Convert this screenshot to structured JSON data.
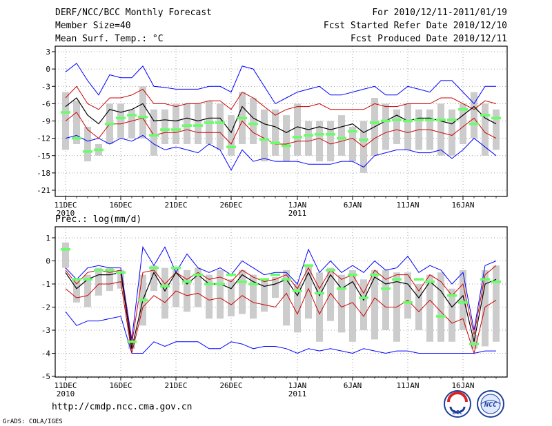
{
  "header": {
    "left": [
      "DERF/NCC/BCC Monthly Forecast",
      "Member Size=40",
      "Mean Surf. Temp.: °C"
    ],
    "right": [
      "For 2010/12/11-2011/01/19",
      "Fcst Started Refer Date 2010/12/10",
      "Fcst Produced Date 2010/12/11"
    ]
  },
  "footer": {
    "url": "http://cmdp.ncc.cma.gov.cn",
    "grads": "GrADS: COLA/IGES",
    "logo1_text": "BCC",
    "logo2_text": "NCC"
  },
  "colors": {
    "bounds": "#0000ff",
    "spread": "#cc0000",
    "mean": "#000000",
    "box": "#cccccc",
    "median": "#66ff66"
  },
  "chart_data": [
    {
      "type": "line",
      "title": "Mean Surf. Temp.: °C",
      "x_day_count": 40,
      "xticks": [
        {
          "day": 1,
          "label": "11DEC",
          "sub": "2010"
        },
        {
          "day": 6,
          "label": "16DEC"
        },
        {
          "day": 11,
          "label": "21DEC"
        },
        {
          "day": 16,
          "label": "26DEC"
        },
        {
          "day": 22,
          "label": "1JAN",
          "sub": "2011"
        },
        {
          "day": 27,
          "label": "6JAN"
        },
        {
          "day": 32,
          "label": "11JAN"
        },
        {
          "day": 37,
          "label": "16JAN"
        }
      ],
      "ylim": [
        -22,
        4
      ],
      "yticks": [
        3,
        0,
        -3,
        -6,
        -9,
        -12,
        -15,
        -18,
        -21
      ],
      "series": {
        "max": [
          -0.5,
          1,
          -2,
          -4.5,
          -1,
          -1.5,
          -1.5,
          0.5,
          -3,
          -3.2,
          -3.5,
          -3.5,
          -3.5,
          -3,
          -3,
          -4,
          0.5,
          0,
          -3,
          -6,
          -5,
          -4,
          -3.5,
          -3,
          -4.5,
          -4.5,
          -4,
          -3.5,
          -3,
          -4.5,
          -4.5,
          -3,
          -3.5,
          -4,
          -2,
          -2,
          -4,
          -6,
          -3,
          -3
        ],
        "upper": [
          -5,
          -3,
          -6,
          -7,
          -5,
          -5,
          -4.5,
          -3.5,
          -6,
          -6,
          -6.5,
          -6,
          -6,
          -5.5,
          -5.5,
          -7,
          -4,
          -5,
          -6.5,
          -8,
          -7,
          -6.5,
          -6.5,
          -6,
          -7,
          -7,
          -7,
          -7,
          -6,
          -6.5,
          -6.5,
          -6,
          -6,
          -6,
          -5,
          -5,
          -6,
          -7,
          -5.5,
          -6
        ],
        "mean": [
          -6.5,
          -5,
          -8,
          -9.5,
          -7,
          -7.5,
          -7,
          -6,
          -9,
          -8.8,
          -9,
          -8.5,
          -9,
          -8.5,
          -8.5,
          -11,
          -6.5,
          -8.5,
          -9.5,
          -10,
          -11,
          -10,
          -10.5,
          -10,
          -10.5,
          -10,
          -9.5,
          -11,
          -10,
          -9,
          -8,
          -9,
          -8.5,
          -8.5,
          -9,
          -9.5,
          -8,
          -6.5,
          -8.5,
          -9.5
        ],
        "lower": [
          -9,
          -7.5,
          -10.5,
          -12,
          -9.5,
          -9.5,
          -9,
          -8.5,
          -11.5,
          -11,
          -11,
          -10.5,
          -11,
          -11,
          -11,
          -13,
          -9,
          -11,
          -12,
          -13,
          -13,
          -12.5,
          -12.5,
          -12,
          -13,
          -12.5,
          -12,
          -13.5,
          -12,
          -11,
          -10.5,
          -11,
          -10.5,
          -10.5,
          -11,
          -11.5,
          -10,
          -8.5,
          -11,
          -12
        ],
        "min": [
          -12,
          -11.5,
          -12.5,
          -12,
          -13,
          -12,
          -12.5,
          -11.5,
          -13,
          -14,
          -13.5,
          -14,
          -14.5,
          -13,
          -14,
          -17.5,
          -14,
          -16,
          -15.5,
          -16,
          -16,
          -16,
          -16.5,
          -16.5,
          -16.5,
          -16,
          -16,
          -17,
          -15,
          -14.5,
          -14,
          -14,
          -14.5,
          -14.5,
          -14,
          -15.5,
          -14,
          -12,
          -13.5,
          -15
        ],
        "box_top": [
          -4,
          -5.5,
          -10,
          -13,
          -6,
          -6,
          -7,
          -3,
          -7,
          -7,
          -6,
          -6,
          -6,
          -5.5,
          -6,
          -8,
          -4,
          -5,
          -7,
          -7,
          -8,
          -6,
          -9,
          -9,
          -9,
          -8,
          -10,
          -9,
          -5,
          -6,
          -7,
          -6,
          -7,
          -7,
          -6,
          -7,
          -6,
          -4,
          -6,
          -7
        ],
        "box_bottom": [
          -14,
          -13,
          -16,
          -15,
          -13,
          -12,
          -12,
          -12,
          -15,
          -13,
          -13,
          -13,
          -13,
          -13,
          -14,
          -15,
          -13,
          -13,
          -16,
          -15,
          -16,
          -15,
          -15,
          -16,
          -16,
          -15,
          -16,
          -18,
          -15,
          -14,
          -13,
          -14,
          -14,
          -14,
          -15,
          -15,
          -13,
          -12,
          -15,
          -14
        ],
        "median": [
          -7.5,
          -12,
          -14.3,
          -14,
          -9.5,
          -8.5,
          -8,
          -8.3,
          -11.5,
          -10.5,
          -10.5,
          -9.8,
          -9.8,
          -9.3,
          -9.3,
          -13.5,
          -8.5,
          -9.5,
          -12.2,
          -12.8,
          -13.3,
          -11.8,
          -11.5,
          -11.3,
          -11.3,
          -12,
          -10.8,
          -12.3,
          -9.3,
          -9,
          -8.8,
          -9,
          -8.8,
          -8.8,
          -8.8,
          -8.8,
          -7,
          -9.5,
          -8,
          -8.5
        ]
      }
    },
    {
      "type": "line",
      "title": "Prec.: log(mm/d)",
      "x_day_count": 40,
      "xticks": [
        {
          "day": 1,
          "label": "11DEC",
          "sub": "2010"
        },
        {
          "day": 6,
          "label": "16DEC"
        },
        {
          "day": 11,
          "label": "21DEC"
        },
        {
          "day": 16,
          "label": "26DEC"
        },
        {
          "day": 22,
          "label": "1JAN",
          "sub": "2011"
        },
        {
          "day": 27,
          "label": "6JAN"
        },
        {
          "day": 32,
          "label": "11JAN"
        },
        {
          "day": 37,
          "label": "16JAN"
        }
      ],
      "ylim": [
        -5,
        1.2
      ],
      "yticks": [
        1,
        0,
        -1,
        -2,
        -3,
        -4,
        -5
      ],
      "series": {
        "max": [
          -0.3,
          -0.8,
          -0.3,
          -0.2,
          -0.3,
          -0.3,
          -3.4,
          0.6,
          -0.2,
          0.6,
          -0.5,
          0.3,
          -0.3,
          -0.5,
          -0.3,
          -0.6,
          0,
          -0.3,
          -0.6,
          -0.5,
          -0.5,
          -1,
          0.5,
          -0.5,
          0,
          -0.5,
          -0.2,
          -0.5,
          0,
          -0.4,
          -0.3,
          0.2,
          -0.5,
          -0.2,
          -0.4,
          -1,
          -0.5,
          -3,
          -0.2,
          0
        ],
        "upper": [
          -0.4,
          -1,
          -0.5,
          -0.4,
          -0.5,
          -0.4,
          -3.6,
          -0.5,
          -0.4,
          -1,
          -0.5,
          -0.8,
          -0.5,
          -0.8,
          -0.7,
          -0.9,
          -0.4,
          -0.7,
          -0.9,
          -0.8,
          -0.6,
          -1.2,
          -0.3,
          -1.2,
          -0.4,
          -0.8,
          -0.6,
          -1.4,
          -0.4,
          -0.8,
          -0.6,
          -0.6,
          -1.3,
          -0.6,
          -0.9,
          -1.5,
          -1,
          -3.2,
          -0.6,
          -0.2
        ],
        "mean": [
          -0.5,
          -1.2,
          -0.8,
          -0.6,
          -0.6,
          -0.5,
          -3.8,
          -1.7,
          -0.5,
          -1.3,
          -0.5,
          -1,
          -0.6,
          -1,
          -1,
          -1.2,
          -0.6,
          -0.9,
          -1.1,
          -1,
          -0.8,
          -1.5,
          -0.5,
          -1.5,
          -0.6,
          -1.2,
          -0.9,
          -1.7,
          -0.7,
          -1,
          -0.9,
          -1,
          -1.6,
          -0.9,
          -1.3,
          -2,
          -1.5,
          -3.5,
          -1,
          -0.8
        ],
        "lower": [
          -1.2,
          -1.6,
          -1.5,
          -1,
          -1,
          -0.9,
          -4,
          -2,
          -1.5,
          -1.8,
          -1.3,
          -1.5,
          -1.4,
          -1.7,
          -1.6,
          -1.9,
          -1.5,
          -1.8,
          -1.9,
          -2,
          -1.4,
          -2.3,
          -1.2,
          -2.3,
          -1.4,
          -2,
          -1.8,
          -2.4,
          -1.6,
          -2,
          -2,
          -1.7,
          -2.2,
          -1.7,
          -2.2,
          -2.7,
          -2.5,
          -4,
          -2,
          -1.7
        ],
        "min": [
          -2.2,
          -2.8,
          -2.6,
          -2.6,
          -2.5,
          -2.4,
          -4,
          -4,
          -3.5,
          -3.7,
          -3.5,
          -3.5,
          -3.5,
          -3.8,
          -3.8,
          -3.5,
          -3.6,
          -3.8,
          -3.7,
          -3.7,
          -3.8,
          -4,
          -3.8,
          -3.9,
          -3.8,
          -3.9,
          -4,
          -3.8,
          -3.9,
          -4,
          -3.9,
          -3.9,
          -4,
          -4,
          -4,
          -4,
          -4,
          -4,
          -3.9,
          -3.9
        ],
        "box_top": [
          0.8,
          -0.8,
          -0.6,
          -0.3,
          -0.3,
          -0.4,
          -3.4,
          -0.6,
          -0.2,
          -0.3,
          -0.3,
          -0.4,
          -0.3,
          -0.6,
          -0.4,
          -0.8,
          -0.4,
          -0.6,
          -0.8,
          -0.7,
          -0.4,
          -1,
          -0.2,
          -0.5,
          -0.3,
          -0.6,
          -0.4,
          -0.8,
          -0.4,
          -0.4,
          -0.5,
          -0.5,
          -1,
          -0.6,
          -0.5,
          -1.2,
          -0.4,
          -3.2,
          -0.4,
          -0.2
        ],
        "box_bottom": [
          -0.3,
          -1.8,
          -2,
          -1.5,
          -1.3,
          -1.2,
          -3.8,
          -2.8,
          -1.3,
          -2.5,
          -2,
          -2.2,
          -2,
          -2.5,
          -2.5,
          -2.4,
          -2.3,
          -2.5,
          -2.2,
          -1.6,
          -2.8,
          -3.1,
          -2.5,
          -3.5,
          -2.6,
          -3.1,
          -3.5,
          -3,
          -3.4,
          -3,
          -3.5,
          -2.5,
          -3,
          -3.5,
          -3.5,
          -3.5,
          -3,
          -3.8,
          -3.7,
          -3.5
        ],
        "median": [
          0.5,
          -0.8,
          -0.8,
          -0.4,
          -0.4,
          -0.5,
          -3.5,
          -1.7,
          -0.3,
          -1.1,
          -0.3,
          -0.9,
          -0.6,
          -1,
          -1,
          -0.6,
          -0.9,
          -1,
          -0.8,
          -0.6,
          -0.8,
          -1.3,
          -0.2,
          -1.4,
          -0.4,
          -1.2,
          -0.6,
          -1.6,
          -0.6,
          -1.2,
          -0.8,
          -1.8,
          -0.8,
          -0.9,
          -2.4,
          -1.5,
          -1.8,
          -3.6,
          -0.8,
          -0.9
        ]
      }
    }
  ]
}
